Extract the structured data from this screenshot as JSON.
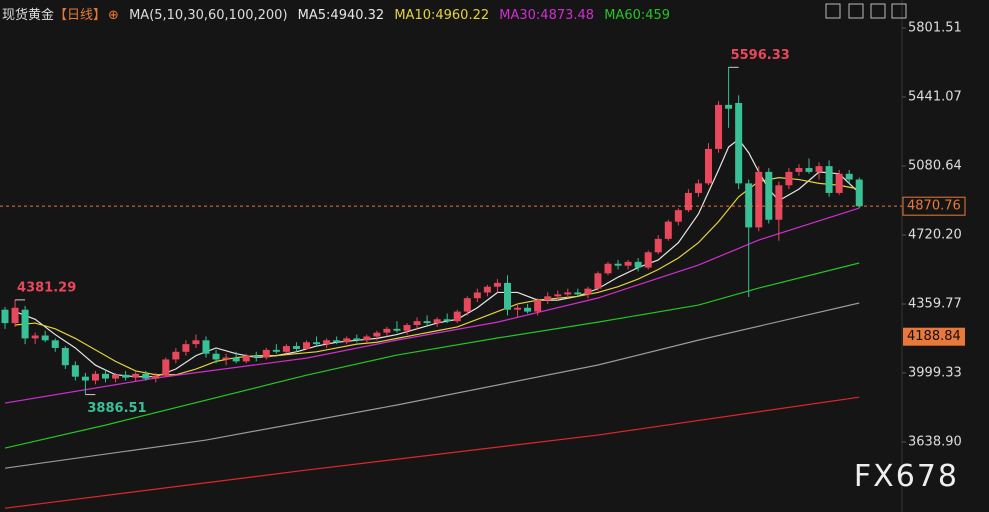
{
  "header": {
    "instrument": "现货黄金",
    "period": "【日线】",
    "ma_set": "MA(5,10,30,60,100,200)"
  },
  "watermark": "FX678",
  "chart_data": {
    "type": "candlestick",
    "up_color": "#e8485b",
    "down_color": "#38c096",
    "ylim": [
      3273,
      5948
    ],
    "yticks": [
      5801.51,
      5441.07,
      5080.64,
      {
        "value": 4720.2,
        "label": "4720.20"
      },
      4359.77,
      3999.33,
      {
        "value": 3638.9,
        "label": "3638.90"
      }
    ],
    "grid": false,
    "current_price": 4870.76,
    "marked_price": 4188.84,
    "open": [
      4330,
      4260,
      4330,
      4180,
      4195,
      4170,
      4130,
      4040,
      3980,
      3960,
      3995,
      3970,
      3990,
      3975,
      3995,
      3970,
      3985,
      4070,
      4110,
      4150,
      4170,
      4100,
      4070,
      4080,
      4060,
      4090,
      4080,
      4120,
      4110,
      4140,
      4125,
      4160,
      4150,
      4170,
      4160,
      4180,
      4170,
      4190,
      4210,
      4230,
      4220,
      4250,
      4270,
      4260,
      4280,
      4270,
      4320,
      4390,
      4420,
      4450,
      4470,
      4330,
      4340,
      4320,
      4380,
      4400,
      4410,
      4420,
      4410,
      4440,
      4520,
      4570,
      4560,
      4580,
      4550,
      4630,
      4700,
      4790,
      4850,
      4940,
      4990,
      5170,
      5400,
      5410,
      4990,
      4760,
      5050,
      4800,
      4980,
      5050,
      5070,
      5050,
      5080,
      4940,
      5040,
      5010
    ],
    "high": [
      4345,
      4381.29,
      4350,
      4210,
      4220,
      4180,
      4140,
      4060,
      4000,
      4010,
      4020,
      4000,
      4010,
      4005,
      4010,
      4000,
      4080,
      4130,
      4170,
      4200,
      4190,
      4120,
      4100,
      4110,
      4100,
      4110,
      4130,
      4150,
      4150,
      4160,
      4170,
      4190,
      4180,
      4190,
      4190,
      4200,
      4200,
      4220,
      4240,
      4270,
      4260,
      4290,
      4300,
      4290,
      4310,
      4330,
      4400,
      4440,
      4460,
      4490,
      4510,
      4360,
      4360,
      4390,
      4420,
      4430,
      4440,
      4440,
      4450,
      4530,
      4580,
      4590,
      4590,
      4600,
      4640,
      4720,
      4800,
      4860,
      4960,
      5010,
      5200,
      5420,
      5596.33,
      5450,
      5010,
      5080,
      5070,
      5000,
      5070,
      5090,
      5120,
      5100,
      5110,
      5060,
      5060,
      5020
    ],
    "low": [
      4230,
      4240,
      4150,
      4150,
      4160,
      4110,
      4020,
      3960,
      3886.51,
      3940,
      3950,
      3950,
      3960,
      3955,
      3960,
      3950,
      3980,
      4050,
      4090,
      4130,
      4080,
      4050,
      4040,
      4050,
      4050,
      4060,
      4070,
      4100,
      4100,
      4110,
      4120,
      4140,
      4130,
      4150,
      4150,
      4160,
      4160,
      4170,
      4190,
      4210,
      4200,
      4230,
      4240,
      4240,
      4260,
      4260,
      4300,
      4370,
      4400,
      4420,
      4300,
      4290,
      4310,
      4300,
      4360,
      4380,
      4390,
      4400,
      4390,
      4430,
      4510,
      4540,
      4540,
      4530,
      4540,
      4620,
      4690,
      4770,
      4840,
      4920,
      4980,
      5150,
      5280,
      4960,
      4396,
      4740,
      4780,
      4690,
      4960,
      5030,
      5040,
      5010,
      4920,
      4930,
      4990,
      4860
    ],
    "close": [
      4260,
      4340,
      4180,
      4195,
      4170,
      4130,
      4040,
      3980,
      3960,
      3995,
      3970,
      3990,
      3975,
      3995,
      3970,
      3985,
      4070,
      4110,
      4150,
      4170,
      4100,
      4070,
      4080,
      4060,
      4090,
      4080,
      4120,
      4110,
      4140,
      4125,
      4160,
      4150,
      4170,
      4160,
      4180,
      4170,
      4190,
      4210,
      4230,
      4220,
      4250,
      4270,
      4260,
      4280,
      4270,
      4320,
      4390,
      4420,
      4450,
      4470,
      4330,
      4340,
      4320,
      4380,
      4400,
      4410,
      4420,
      4410,
      4440,
      4520,
      4570,
      4560,
      4580,
      4550,
      4630,
      4700,
      4790,
      4850,
      4940,
      4990,
      5170,
      5400,
      5380,
      4990,
      4760,
      5050,
      4800,
      4980,
      5050,
      5070,
      5050,
      5080,
      4940,
      5040,
      5010,
      4870.76
    ],
    "series": [
      {
        "name": "MA5:4940.32",
        "color": "#e6e6e6",
        "x": [
          1,
          3,
          5,
          7,
          9,
          11,
          13,
          15,
          17,
          19,
          21,
          23,
          25,
          27,
          29,
          31,
          33,
          35,
          37,
          39,
          41,
          43,
          45,
          47,
          49,
          51,
          53,
          55,
          57,
          59,
          61,
          63,
          65,
          67,
          69,
          71,
          72,
          73,
          74,
          75,
          76,
          77,
          79,
          81,
          83,
          85
        ],
        "values": [
          4320,
          4280,
          4200,
          4130,
          4040,
          3990,
          3980,
          3980,
          4020,
          4090,
          4130,
          4100,
          4080,
          4090,
          4110,
          4140,
          4160,
          4170,
          4180,
          4200,
          4230,
          4260,
          4280,
          4340,
          4420,
          4420,
          4380,
          4380,
          4400,
          4440,
          4500,
          4550,
          4590,
          4680,
          4830,
          5060,
          5180,
          5220,
          5150,
          5050,
          4960,
          4900,
          4960,
          5050,
          5040,
          4940
        ]
      },
      {
        "name": "MA10:4960.22",
        "color": "#e3d33a",
        "x": [
          1,
          3,
          5,
          7,
          9,
          11,
          13,
          15,
          17,
          19,
          21,
          23,
          25,
          27,
          29,
          31,
          33,
          35,
          37,
          39,
          41,
          43,
          45,
          47,
          49,
          51,
          53,
          55,
          57,
          59,
          61,
          63,
          65,
          67,
          69,
          71,
          73,
          75,
          77,
          79,
          81,
          83,
          85
        ],
        "values": [
          4250,
          4260,
          4230,
          4180,
          4120,
          4060,
          4010,
          3990,
          3990,
          4020,
          4060,
          4080,
          4090,
          4090,
          4100,
          4110,
          4130,
          4150,
          4160,
          4180,
          4200,
          4220,
          4240,
          4280,
          4320,
          4360,
          4380,
          4390,
          4400,
          4420,
          4450,
          4490,
          4540,
          4600,
          4680,
          4790,
          4920,
          5000,
          5020,
          5010,
          4990,
          4980,
          4960
        ]
      },
      {
        "name": "MA30:4873.48",
        "color": "#d02ed0",
        "x": [
          0,
          15,
          30,
          39,
          49,
          59,
          69,
          75,
          85
        ],
        "values": [
          3842,
          3973,
          4077,
          4171,
          4265,
          4391,
          4563,
          4694,
          4861
        ]
      },
      {
        "name": "MA60:459",
        "color": "#25c425",
        "x": [
          0,
          10,
          30,
          39,
          49,
          59,
          69,
          75,
          85
        ],
        "values": [
          3607,
          3727,
          3988,
          4093,
          4182,
          4265,
          4354,
          4443,
          4574
        ]
      },
      {
        "color": "#9a9a9a",
        "x": [
          0,
          20,
          39,
          59,
          69,
          85
        ],
        "values": [
          3502,
          3649,
          3832,
          4041,
          4171,
          4365
        ]
      },
      {
        "color": "#e0262b",
        "x": [
          0,
          30,
          59,
          85
        ],
        "values": [
          3293,
          3492,
          3675,
          3873
        ]
      }
    ]
  }
}
